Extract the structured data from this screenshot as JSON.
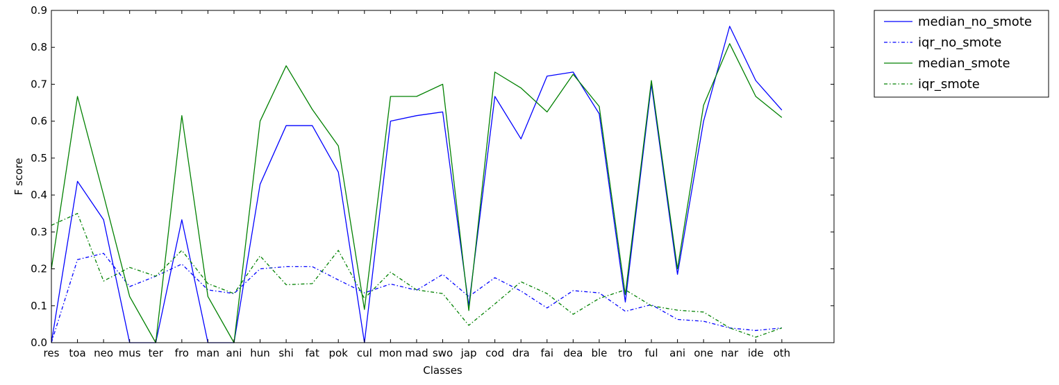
{
  "chart_data": {
    "type": "line",
    "xlabel": "Classes",
    "ylabel": "F score",
    "ylim": [
      0,
      0.9
    ],
    "yticks": [
      "0.0",
      "0.1",
      "0.2",
      "0.3",
      "0.4",
      "0.5",
      "0.6",
      "0.7",
      "0.8",
      "0.9"
    ],
    "xlim_index": [
      0,
      30
    ],
    "categories": [
      "res",
      "toa",
      "neo",
      "mus",
      "ter",
      "fro",
      "man",
      "ani",
      "hun",
      "shi",
      "fat",
      "pok",
      "cul",
      "mon",
      "mad",
      "swo",
      "jap",
      "cod",
      "dra",
      "fai",
      "dea",
      "ble",
      "tro",
      "ful",
      "ani",
      "one",
      "nar",
      "ide",
      "oth"
    ],
    "grid": false,
    "legend_position": "outside-top-right",
    "series": [
      {
        "name": "median_no_smote",
        "color": "#0000ff",
        "style": "solid",
        "values": [
          0.0,
          0.437,
          0.333,
          0.0,
          0.0,
          0.333,
          0.0,
          0.0,
          0.429,
          0.588,
          0.588,
          0.462,
          0.0,
          0.6,
          0.615,
          0.625,
          0.1,
          0.667,
          0.552,
          0.722,
          0.733,
          0.62,
          0.11,
          0.7,
          0.185,
          0.6,
          0.857,
          0.71,
          0.63
        ]
      },
      {
        "name": "iqr_no_smote",
        "color": "#0000ff",
        "style": "dashdot",
        "values": [
          0.0,
          0.225,
          0.242,
          0.152,
          0.18,
          0.213,
          0.143,
          0.133,
          0.2,
          0.206,
          0.206,
          0.17,
          0.135,
          0.159,
          0.142,
          0.185,
          0.125,
          0.176,
          0.14,
          0.094,
          0.141,
          0.135,
          0.085,
          0.103,
          0.063,
          0.058,
          0.04,
          0.033,
          0.04
        ]
      },
      {
        "name": "median_smote",
        "color": "#008000",
        "style": "solid",
        "values": [
          0.2,
          0.667,
          0.4,
          0.125,
          0.0,
          0.615,
          0.125,
          0.0,
          0.6,
          0.75,
          0.632,
          0.533,
          0.09,
          0.667,
          0.667,
          0.7,
          0.087,
          0.733,
          0.69,
          0.625,
          0.727,
          0.64,
          0.13,
          0.71,
          0.2,
          0.643,
          0.81,
          0.667,
          0.61
        ]
      },
      {
        "name": "iqr_smote",
        "color": "#008000",
        "style": "dashdot",
        "values": [
          0.318,
          0.35,
          0.167,
          0.204,
          0.18,
          0.25,
          0.16,
          0.133,
          0.235,
          0.157,
          0.16,
          0.25,
          0.12,
          0.191,
          0.143,
          0.133,
          0.047,
          0.105,
          0.165,
          0.133,
          0.077,
          0.12,
          0.143,
          0.1,
          0.088,
          0.083,
          0.04,
          0.015,
          0.04
        ]
      }
    ]
  }
}
